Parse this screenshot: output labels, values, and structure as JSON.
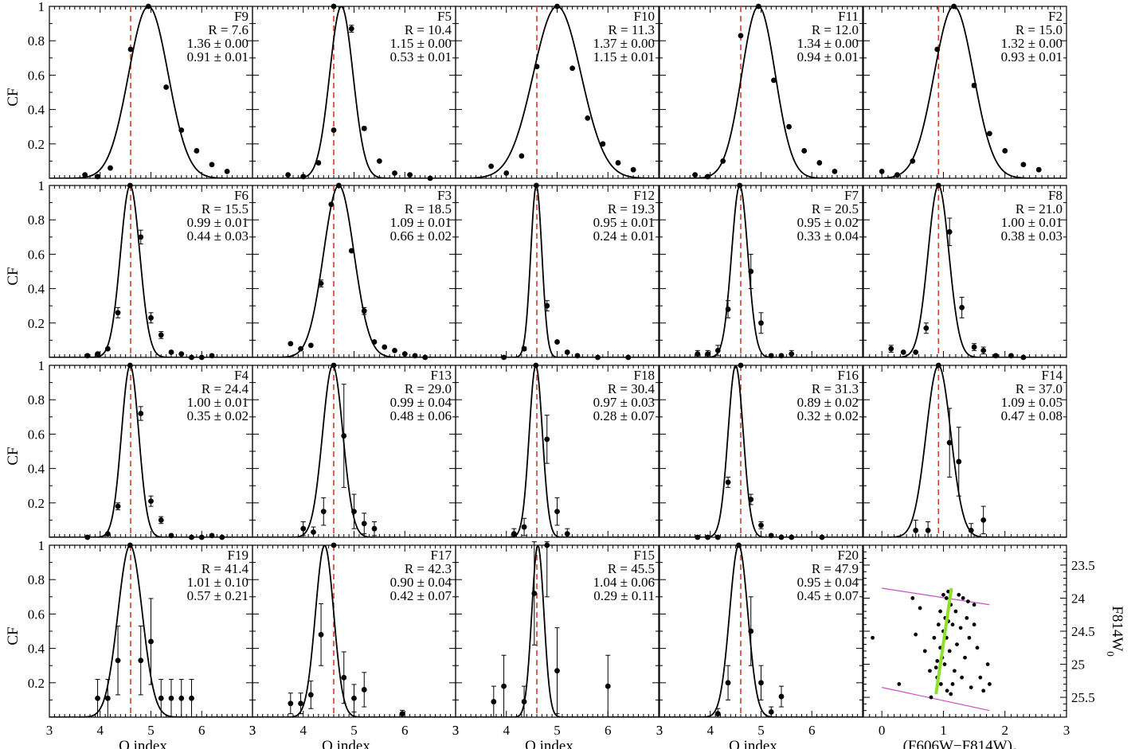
{
  "colors": {
    "axis": "#000000",
    "curve": "#000000",
    "points": "#000000",
    "reference_line": "#d2402a",
    "cmd_fit": "#8fe02a",
    "cmd_bounds": "#c850c8"
  },
  "chart_data": [
    {
      "type": "scatter",
      "label": "F9",
      "R": "R = 7.6",
      "fit1": "1.36 ± 0.00",
      "fit2": "0.91 ± 0.01",
      "mu": 4.95,
      "sigma": 0.39,
      "points": [
        [
          3.7,
          0.02,
          0
        ],
        [
          3.95,
          0.01,
          0
        ],
        [
          4.2,
          0.06,
          0
        ],
        [
          4.6,
          0.75,
          0
        ],
        [
          4.95,
          1.0,
          0
        ],
        [
          5.3,
          0.53,
          0
        ],
        [
          5.6,
          0.28,
          0
        ],
        [
          5.9,
          0.16,
          0
        ],
        [
          6.2,
          0.08,
          0
        ],
        [
          6.5,
          0.04,
          0
        ]
      ]
    },
    {
      "type": "scatter",
      "label": "F5",
      "R": "R = 10.4",
      "fit1": "1.15 ± 0.00",
      "fit2": "0.53 ± 0.01",
      "mu": 4.75,
      "sigma": 0.23,
      "points": [
        [
          3.7,
          0.02,
          0
        ],
        [
          4.0,
          0.01,
          0
        ],
        [
          4.3,
          0.09,
          0
        ],
        [
          4.6,
          0.28,
          0
        ],
        [
          4.6,
          1.0,
          0
        ],
        [
          4.95,
          0.87,
          0.02
        ],
        [
          5.2,
          0.29,
          0.01
        ],
        [
          5.5,
          0.1,
          0
        ],
        [
          5.8,
          0.03,
          0
        ],
        [
          6.1,
          0.02,
          0
        ],
        [
          6.5,
          0.0,
          0
        ]
      ]
    },
    {
      "type": "scatter",
      "label": "F10",
      "R": "R = 11.3",
      "fit1": "1.37 ± 0.00",
      "fit2": "1.15 ± 0.01",
      "mu": 5.0,
      "sigma": 0.47,
      "points": [
        [
          3.7,
          0.07,
          0
        ],
        [
          4.0,
          0.03,
          0
        ],
        [
          4.3,
          0.13,
          0
        ],
        [
          4.6,
          0.65,
          0
        ],
        [
          5.0,
          1.0,
          0
        ],
        [
          5.3,
          0.64,
          0
        ],
        [
          5.6,
          0.35,
          0
        ],
        [
          5.9,
          0.2,
          0
        ],
        [
          6.2,
          0.09,
          0
        ],
        [
          6.5,
          0.05,
          0
        ]
      ]
    },
    {
      "type": "scatter",
      "label": "F11",
      "R": "R = 12.0",
      "fit1": "1.34 ± 0.00",
      "fit2": "0.94 ± 0.01",
      "mu": 4.95,
      "sigma": 0.33,
      "points": [
        [
          3.7,
          0.02,
          0
        ],
        [
          3.95,
          0.01,
          0
        ],
        [
          4.25,
          0.1,
          0
        ],
        [
          4.6,
          0.83,
          0
        ],
        [
          4.95,
          1.0,
          0
        ],
        [
          5.25,
          0.57,
          0
        ],
        [
          5.55,
          0.3,
          0
        ],
        [
          5.85,
          0.16,
          0
        ],
        [
          6.15,
          0.09,
          0
        ],
        [
          6.45,
          0.04,
          0
        ]
      ]
    },
    {
      "type": "scatter",
      "label": "F2",
      "R": "R = 15.0",
      "fit1": "1.32 ± 0.00",
      "fit2": "0.93 ± 0.01",
      "mu": 1.17,
      "sigma": 0.32,
      "points": [
        [
          0.0,
          0.04,
          0
        ],
        [
          0.25,
          0.02,
          0
        ],
        [
          0.5,
          0.1,
          0
        ],
        [
          0.9,
          0.75,
          0
        ],
        [
          1.17,
          1.0,
          0
        ],
        [
          1.5,
          0.54,
          0.01
        ],
        [
          1.75,
          0.26,
          0
        ],
        [
          2.0,
          0.16,
          0
        ],
        [
          2.3,
          0.08,
          0
        ],
        [
          2.55,
          0.05,
          0
        ]
      ]
    },
    {
      "type": "scatter",
      "label": "F6",
      "R": "R = 15.5",
      "fit1": "0.99 ± 0.01",
      "fit2": "0.44 ± 0.03",
      "mu": 4.59,
      "sigma": 0.19,
      "points": [
        [
          3.75,
          0.01,
          0
        ],
        [
          3.95,
          0.02,
          0
        ],
        [
          4.15,
          0.05,
          0
        ],
        [
          4.35,
          0.26,
          0.03
        ],
        [
          4.59,
          1.0,
          0
        ],
        [
          4.8,
          0.7,
          0.04
        ],
        [
          5.0,
          0.23,
          0.03
        ],
        [
          5.2,
          0.13,
          0.02
        ],
        [
          5.4,
          0.03,
          0
        ],
        [
          5.6,
          0.02,
          0
        ],
        [
          5.8,
          0.0,
          0
        ],
        [
          6.0,
          0.0,
          0
        ],
        [
          6.2,
          0.01,
          0
        ]
      ]
    },
    {
      "type": "scatter",
      "label": "F3",
      "R": "R = 18.5",
      "fit1": "1.09 ± 0.01",
      "fit2": "0.66 ± 0.02",
      "mu": 4.7,
      "sigma": 0.3,
      "points": [
        [
          3.75,
          0.08,
          0
        ],
        [
          3.95,
          0.05,
          0
        ],
        [
          4.15,
          0.07,
          0
        ],
        [
          4.35,
          0.43,
          0.02
        ],
        [
          4.55,
          0.89,
          0
        ],
        [
          4.7,
          1.0,
          0
        ],
        [
          4.95,
          0.62,
          0
        ],
        [
          5.2,
          0.27,
          0.02
        ],
        [
          5.4,
          0.09,
          0
        ],
        [
          5.6,
          0.06,
          0
        ],
        [
          5.8,
          0.04,
          0
        ],
        [
          6.0,
          0.02,
          0
        ],
        [
          6.2,
          0.01,
          0
        ],
        [
          6.4,
          0.0,
          0
        ]
      ]
    },
    {
      "type": "scatter",
      "label": "F12",
      "R": "R = 19.3",
      "fit1": "0.95 ± 0.01",
      "fit2": "0.24 ± 0.01",
      "mu": 4.59,
      "sigma": 0.11,
      "points": [
        [
          3.95,
          0.0,
          0
        ],
        [
          4.35,
          0.05,
          0.01
        ],
        [
          4.59,
          1.0,
          0
        ],
        [
          4.8,
          0.3,
          0.03
        ],
        [
          5.0,
          0.09,
          0
        ],
        [
          5.2,
          0.03,
          0
        ],
        [
          5.4,
          0.01,
          0
        ],
        [
          5.8,
          0.0,
          0
        ],
        [
          6.4,
          0.0,
          0
        ]
      ]
    },
    {
      "type": "scatter",
      "label": "F7",
      "R": "R = 20.5",
      "fit1": "0.95 ± 0.02",
      "fit2": "0.33 ± 0.04",
      "mu": 4.58,
      "sigma": 0.16,
      "points": [
        [
          3.75,
          0.02,
          0.02
        ],
        [
          3.95,
          0.02,
          0.02
        ],
        [
          4.15,
          0.04,
          0.03
        ],
        [
          4.35,
          0.28,
          0.05
        ],
        [
          4.58,
          1.0,
          0
        ],
        [
          4.8,
          0.5,
          0.1
        ],
        [
          5.0,
          0.2,
          0.06
        ],
        [
          5.2,
          0.01,
          0
        ],
        [
          5.4,
          0.01,
          0
        ],
        [
          5.6,
          0.02,
          0.02
        ]
      ]
    },
    {
      "type": "scatter",
      "label": "F8",
      "R": "R = 21.0",
      "fit1": "1.00 ± 0.01",
      "fit2": "0.38 ± 0.03",
      "mu": 0.92,
      "sigma": 0.17,
      "points": [
        [
          0.15,
          0.05,
          0.02
        ],
        [
          0.35,
          0.03,
          0
        ],
        [
          0.55,
          0.03,
          0
        ],
        [
          0.72,
          0.17,
          0.03
        ],
        [
          0.92,
          1.0,
          0
        ],
        [
          1.1,
          0.73,
          0.08
        ],
        [
          1.3,
          0.29,
          0.06
        ],
        [
          1.5,
          0.06,
          0.02
        ],
        [
          1.65,
          0.04,
          0.02
        ],
        [
          1.85,
          0.01,
          0
        ],
        [
          2.1,
          0.01,
          0
        ],
        [
          2.3,
          0.0,
          0
        ]
      ]
    },
    {
      "type": "scatter",
      "label": "F4",
      "R": "R = 24.4",
      "fit1": "1.00 ± 0.01",
      "fit2": "0.35 ± 0.02",
      "mu": 4.59,
      "sigma": 0.17,
      "points": [
        [
          3.75,
          0.0,
          0
        ],
        [
          4.15,
          0.02,
          0
        ],
        [
          4.35,
          0.18,
          0.02
        ],
        [
          4.59,
          1.0,
          0
        ],
        [
          4.8,
          0.72,
          0.04
        ],
        [
          5.0,
          0.21,
          0.03
        ],
        [
          5.2,
          0.1,
          0.02
        ],
        [
          5.4,
          0.01,
          0
        ],
        [
          5.8,
          0.0,
          0
        ],
        [
          6.0,
          0.0,
          0
        ],
        [
          6.2,
          0.01,
          0
        ],
        [
          6.4,
          0.0,
          0
        ]
      ]
    },
    {
      "type": "scatter",
      "label": "F13",
      "R": "R = 29.0",
      "fit1": "0.99 ± 0.04",
      "fit2": "0.48 ± 0.06",
      "mu": 4.58,
      "sigma": 0.2,
      "points": [
        [
          4.0,
          0.05,
          0.04
        ],
        [
          4.2,
          0.03,
          0.03
        ],
        [
          4.4,
          0.15,
          0.08
        ],
        [
          4.6,
          1.0,
          0
        ],
        [
          4.8,
          0.59,
          0.3
        ],
        [
          5.0,
          0.15,
          0.1
        ],
        [
          5.2,
          0.08,
          0.06
        ],
        [
          5.4,
          0.05,
          0.04
        ]
      ]
    },
    {
      "type": "scatter",
      "label": "F18",
      "R": "R = 30.4",
      "fit1": "0.97 ± 0.03",
      "fit2": "0.28 ± 0.07",
      "mu": 4.58,
      "sigma": 0.13,
      "points": [
        [
          4.15,
          0.02,
          0.03
        ],
        [
          4.35,
          0.06,
          0.05
        ],
        [
          4.58,
          1.0,
          0
        ],
        [
          4.8,
          0.57,
          0.14
        ],
        [
          5.0,
          0.15,
          0.08
        ],
        [
          5.2,
          0.02,
          0.03
        ]
      ]
    },
    {
      "type": "scatter",
      "label": "F16",
      "R": "R = 31.3",
      "fit1": "0.89 ± 0.02",
      "fit2": "0.32 ± 0.02",
      "mu": 4.5,
      "sigma": 0.15,
      "points": [
        [
          3.75,
          0.0,
          0
        ],
        [
          3.95,
          0.0,
          0
        ],
        [
          4.15,
          0.0,
          0
        ],
        [
          4.35,
          0.32,
          0.03
        ],
        [
          4.6,
          1.0,
          0
        ],
        [
          4.8,
          0.22,
          0.03
        ],
        [
          5.0,
          0.07,
          0.02
        ],
        [
          5.2,
          0.01,
          0
        ],
        [
          5.4,
          0.0,
          0
        ],
        [
          5.6,
          0.0,
          0
        ],
        [
          6.2,
          0.0,
          0
        ]
      ]
    },
    {
      "type": "scatter",
      "label": "F14",
      "R": "R = 37.0",
      "fit1": "1.09 ± 0.05",
      "fit2": "0.47 ± 0.08",
      "mu": 0.92,
      "sigma": 0.2,
      "points": [
        [
          0.55,
          0.04,
          0.06
        ],
        [
          0.75,
          0.04,
          0.05
        ],
        [
          0.92,
          1.0,
          0
        ],
        [
          1.1,
          0.55,
          0.2
        ],
        [
          1.25,
          0.44,
          0.2
        ],
        [
          1.45,
          0.04,
          0.04
        ],
        [
          1.65,
          0.1,
          0.08
        ]
      ]
    },
    {
      "type": "scatter",
      "label": "F19",
      "R": "R = 41.4",
      "fit1": "1.01 ± 0.10",
      "fit2": "0.57 ± 0.21",
      "mu": 4.59,
      "sigma": 0.24,
      "points": [
        [
          3.95,
          0.11,
          0.11
        ],
        [
          4.15,
          0.11,
          0.11
        ],
        [
          4.35,
          0.33,
          0.2
        ],
        [
          4.59,
          1.0,
          0
        ],
        [
          4.8,
          0.33,
          0.2
        ],
        [
          5.0,
          0.44,
          0.25
        ],
        [
          5.2,
          0.11,
          0.11
        ],
        [
          5.4,
          0.11,
          0.11
        ],
        [
          5.6,
          0.11,
          0.11
        ],
        [
          5.8,
          0.11,
          0.11
        ]
      ]
    },
    {
      "type": "scatter",
      "label": "F17",
      "R": "R = 42.3",
      "fit1": "0.90 ± 0.04",
      "fit2": "0.42 ± 0.07",
      "mu": 4.42,
      "sigma": 0.18,
      "points": [
        [
          3.75,
          0.08,
          0.06
        ],
        [
          3.95,
          0.08,
          0.06
        ],
        [
          4.15,
          0.13,
          0.08
        ],
        [
          4.35,
          0.48,
          0.18
        ],
        [
          4.6,
          1.0,
          0
        ],
        [
          4.8,
          0.23,
          0.15
        ],
        [
          5.0,
          0.11,
          0.08
        ],
        [
          5.2,
          0.16,
          0.1
        ],
        [
          5.95,
          0.02,
          0.02
        ]
      ]
    },
    {
      "type": "scatter",
      "label": "F15",
      "R": "R = 45.5",
      "fit1": "1.04 ± 0.06",
      "fit2": "0.29 ± 0.11",
      "mu": 4.62,
      "sigma": 0.12,
      "points": [
        [
          3.75,
          0.09,
          0.09
        ],
        [
          3.95,
          0.18,
          0.18
        ],
        [
          4.35,
          0.09,
          0.09
        ],
        [
          4.55,
          0.72,
          0.3
        ],
        [
          4.8,
          1.0,
          0.3
        ],
        [
          5.0,
          0.27,
          0.25
        ],
        [
          6.0,
          0.18,
          0.18
        ]
      ]
    },
    {
      "type": "scatter",
      "label": "F20",
      "R": "R = 47.9",
      "fit1": "0.95 ± 0.04",
      "fit2": "0.45 ± 0.07",
      "mu": 4.56,
      "sigma": 0.18,
      "points": [
        [
          4.15,
          0.02,
          0.03
        ],
        [
          4.35,
          0.2,
          0.1
        ],
        [
          4.56,
          1.0,
          0
        ],
        [
          4.8,
          0.5,
          0.2
        ],
        [
          5.0,
          0.2,
          0.1
        ],
        [
          5.2,
          0.03,
          0.03
        ],
        [
          5.4,
          0.12,
          0.06
        ]
      ]
    }
  ],
  "layout_rows": [
    {
      "ylabel": "CF",
      "xticks": false
    },
    {
      "ylabel": "CF",
      "xticks": false
    },
    {
      "ylabel": "CF",
      "xticks": false
    },
    {
      "ylabel": "CF",
      "xticks": true
    }
  ],
  "axes": {
    "q_xlim": [
      3,
      7
    ],
    "color_xlim": [
      -0.3,
      3
    ],
    "ylim": [
      0,
      1
    ],
    "q_xticks": [
      "3",
      "4",
      "5",
      "6"
    ],
    "color_xticks": [
      "0",
      "1",
      "2",
      "3"
    ],
    "yticks": [
      "0.2",
      "0.4",
      "0.6",
      "0.8",
      "1"
    ],
    "q_xlabel": "Q index",
    "color_xlabel_main": "(F606W−F814W)",
    "color_xlabel_sub": "0",
    "reference_q": 4.6,
    "reference_color": 0.92
  },
  "cmd": {
    "type": "scatter",
    "xlim": [
      -0.3,
      3
    ],
    "ylim_inverted": [
      23.2,
      25.8
    ],
    "yticks": [
      "23.5",
      "24",
      "24.5",
      "25",
      "25.5"
    ],
    "ylabel_main": "F814W",
    "ylabel_sub": "0",
    "fit_line": [
      [
        0.88,
        25.45
      ],
      [
        1.13,
        23.85
      ]
    ],
    "upper_bound": [
      [
        0.0,
        23.85
      ],
      [
        1.75,
        24.1
      ]
    ],
    "lower_bound": [
      [
        0.0,
        25.35
      ],
      [
        1.75,
        25.7
      ]
    ],
    "stars": [
      [
        -0.15,
        24.6
      ],
      [
        0.28,
        25.3
      ],
      [
        0.5,
        24.0
      ],
      [
        0.62,
        24.15
      ],
      [
        0.8,
        25.5
      ],
      [
        0.85,
        24.6
      ],
      [
        0.88,
        25.05
      ],
      [
        0.9,
        24.95
      ],
      [
        0.9,
        25.2
      ],
      [
        0.92,
        24.4
      ],
      [
        0.95,
        24.2
      ],
      [
        0.95,
        24.75
      ],
      [
        0.96,
        25.3
      ],
      [
        0.98,
        24.9
      ],
      [
        1.0,
        23.95
      ],
      [
        1.0,
        24.5
      ],
      [
        1.02,
        25.0
      ],
      [
        1.03,
        24.3
      ],
      [
        1.05,
        24.0
      ],
      [
        1.05,
        24.6
      ],
      [
        1.06,
        25.4
      ],
      [
        1.08,
        23.9
      ],
      [
        1.1,
        24.8
      ],
      [
        1.12,
        24.1
      ],
      [
        1.15,
        24.4
      ],
      [
        1.18,
        25.1
      ],
      [
        1.2,
        24.2
      ],
      [
        1.22,
        24.7
      ],
      [
        1.25,
        23.95
      ],
      [
        1.28,
        24.45
      ],
      [
        1.3,
        25.2
      ],
      [
        1.32,
        24.0
      ],
      [
        1.35,
        24.9
      ],
      [
        1.38,
        24.3
      ],
      [
        1.42,
        24.6
      ],
      [
        1.45,
        25.35
      ],
      [
        1.5,
        24.1
      ],
      [
        1.55,
        24.75
      ],
      [
        1.6,
        25.2
      ],
      [
        1.65,
        25.4
      ],
      [
        1.72,
        25.0
      ],
      [
        1.75,
        25.3
      ],
      [
        0.7,
        24.8
      ],
      [
        0.78,
        25.1
      ],
      [
        1.12,
        25.45
      ],
      [
        1.4,
        24.05
      ],
      [
        1.5,
        24.4
      ],
      [
        0.55,
        24.55
      ],
      [
        1.08,
        24.35
      ],
      [
        1.15,
        25.3
      ]
    ]
  }
}
